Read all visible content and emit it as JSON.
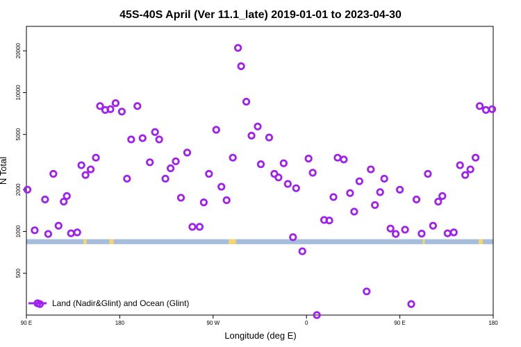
{
  "chart_data": {
    "type": "scatter",
    "title": "45S-40S April (Ver 11.1_late)   2019-01-01 to 2023-04-30",
    "xlabel": "Longitude (deg E)",
    "ylabel": "N Total",
    "x_ticks": [
      {
        "value": 90,
        "label": "90 E"
      },
      {
        "value": 180,
        "label": "180"
      },
      {
        "value": 270,
        "label": "90 W"
      },
      {
        "value": 360,
        "label": "0"
      },
      {
        "value": 450,
        "label": "90 E"
      },
      {
        "value": 540,
        "label": "180"
      }
    ],
    "xlim": [
      90,
      540
    ],
    "y_scale": "log",
    "y_ticks": [
      500,
      1000,
      2000,
      5000,
      10000,
      20000
    ],
    "ylim": [
      250,
      30000
    ],
    "legend": {
      "label": "Land (Nadir&Glint) and Ocean (Glint)",
      "position": "bottom-left"
    },
    "colors": {
      "marker": "#a020f0",
      "band": "#a6bddb",
      "land": "#f9d56e"
    },
    "band": {
      "y_low": 810,
      "y_high": 880
    },
    "land_segments": [
      [
        145,
        148
      ],
      [
        170,
        174
      ],
      [
        285,
        292
      ],
      [
        472,
        474
      ],
      [
        526,
        530
      ]
    ],
    "series": [
      {
        "values": [
          [
            91,
            2000
          ],
          [
            98,
            1020
          ],
          [
            103,
            300
          ],
          [
            108,
            1700
          ],
          [
            111,
            960
          ],
          [
            116,
            2600
          ],
          [
            121,
            1100
          ],
          [
            126,
            1640
          ],
          [
            129,
            1800
          ],
          [
            133,
            970
          ],
          [
            139,
            985
          ],
          [
            143,
            3000
          ],
          [
            147,
            2550
          ],
          [
            152,
            2800
          ],
          [
            157,
            3400
          ],
          [
            161,
            8000
          ],
          [
            166,
            7500
          ],
          [
            171,
            7600
          ],
          [
            176,
            8400
          ],
          [
            182,
            7300
          ],
          [
            187,
            2400
          ],
          [
            191,
            4600
          ],
          [
            197,
            8000
          ],
          [
            202,
            4700
          ],
          [
            209,
            3150
          ],
          [
            214,
            5200
          ],
          [
            218,
            4600
          ],
          [
            224,
            2400
          ],
          [
            229,
            2850
          ],
          [
            234,
            3200
          ],
          [
            239,
            1750
          ],
          [
            245,
            3700
          ],
          [
            250,
            1080
          ],
          [
            257,
            1080
          ],
          [
            261,
            1620
          ],
          [
            266,
            2600
          ],
          [
            273,
            5400
          ],
          [
            278,
            2100
          ],
          [
            283,
            1680
          ],
          [
            289,
            3400
          ],
          [
            294,
            21000
          ],
          [
            297,
            15500
          ],
          [
            302,
            8600
          ],
          [
            307,
            4900
          ],
          [
            313,
            5700
          ],
          [
            316,
            3050
          ],
          [
            324,
            4750
          ],
          [
            329,
            2600
          ],
          [
            333,
            2450
          ],
          [
            338,
            3100
          ],
          [
            342,
            2200
          ],
          [
            347,
            910
          ],
          [
            350,
            2050
          ],
          [
            356,
            720
          ],
          [
            362,
            3350
          ],
          [
            366,
            2650
          ],
          [
            370,
            250
          ],
          [
            377,
            1210
          ],
          [
            382,
            1200
          ],
          [
            386,
            1770
          ],
          [
            390,
            3400
          ],
          [
            396,
            3300
          ],
          [
            402,
            1890
          ],
          [
            406,
            1390
          ],
          [
            411,
            2300
          ],
          [
            418,
            370
          ],
          [
            422,
            2800
          ],
          [
            426,
            1550
          ],
          [
            431,
            1920
          ],
          [
            435,
            2400
          ],
          [
            441,
            1050
          ],
          [
            446,
            960
          ],
          [
            450,
            2000
          ],
          [
            455,
            1030
          ],
          [
            461,
            300
          ],
          [
            466,
            1700
          ],
          [
            471,
            965
          ],
          [
            477,
            2600
          ],
          [
            482,
            1100
          ],
          [
            487,
            1640
          ],
          [
            491,
            1800
          ],
          [
            496,
            970
          ],
          [
            502,
            985
          ],
          [
            508,
            3000
          ],
          [
            513,
            2550
          ],
          [
            518,
            2800
          ],
          [
            523,
            3400
          ],
          [
            527,
            8000
          ],
          [
            533,
            7500
          ],
          [
            539,
            7600
          ]
        ]
      }
    ]
  }
}
